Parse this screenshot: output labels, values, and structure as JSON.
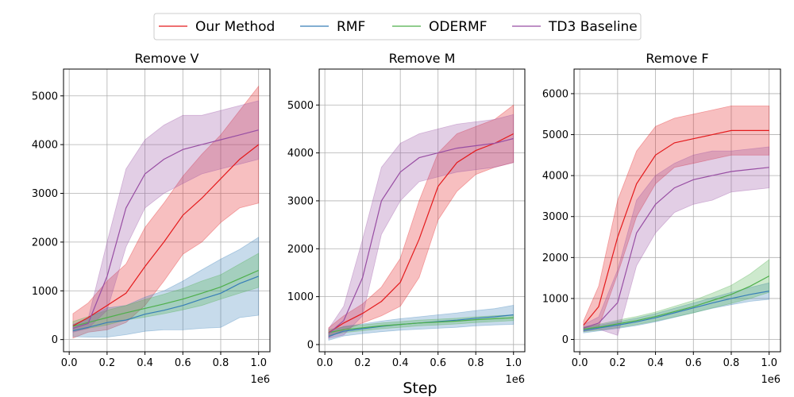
{
  "figure": {
    "xlabel": "Step",
    "x_scale_label": "1e6"
  },
  "legend": [
    {
      "name": "Our Method",
      "color": "#e41a1c"
    },
    {
      "name": "RMF",
      "color": "#377eb8"
    },
    {
      "name": "ODERMF",
      "color": "#4daf4a"
    },
    {
      "name": "TD3 Baseline",
      "color": "#984ea3"
    }
  ],
  "chart_data": [
    {
      "type": "line",
      "title": "Remove V",
      "xlim": [
        -0.03,
        1.06
      ],
      "ylim": [
        -250,
        5550
      ],
      "x_ticks": [
        0.0,
        0.2,
        0.4,
        0.6,
        0.8,
        1.0
      ],
      "x_tick_labels": [
        "0.0",
        "0.2",
        "0.4",
        "0.6",
        "0.8",
        "1.0"
      ],
      "y_ticks": [
        0,
        1000,
        2000,
        3000,
        4000,
        5000
      ],
      "y_tick_labels": [
        "0",
        "1000",
        "2000",
        "3000",
        "4000",
        "5000"
      ],
      "x": [
        0.02,
        0.1,
        0.2,
        0.3,
        0.4,
        0.5,
        0.6,
        0.7,
        0.8,
        0.9,
        1.0
      ],
      "series": [
        {
          "name": "Our Method",
          "mean": [
            280,
            450,
            700,
            950,
            1500,
            2000,
            2550,
            2900,
            3300,
            3700,
            4000
          ],
          "band": [
            250,
            300,
            500,
            600,
            800,
            800,
            800,
            900,
            900,
            1000,
            1200
          ]
        },
        {
          "name": "RMF",
          "mean": [
            180,
            250,
            350,
            400,
            520,
            600,
            700,
            830,
            950,
            1150,
            1300
          ],
          "band": [
            120,
            200,
            300,
            300,
            350,
            400,
            500,
            600,
            700,
            700,
            800
          ]
        },
        {
          "name": "ODERMF",
          "mean": [
            270,
            350,
            450,
            550,
            640,
            730,
            830,
            950,
            1080,
            1250,
            1420
          ],
          "band": [
            100,
            120,
            150,
            150,
            180,
            200,
            220,
            250,
            250,
            300,
            350
          ]
        },
        {
          "name": "TD3 Baseline",
          "mean": [
            230,
            330,
            1300,
            2700,
            3400,
            3700,
            3900,
            4000,
            4100,
            4200,
            4300
          ],
          "band": [
            80,
            100,
            700,
            800,
            700,
            700,
            700,
            600,
            600,
            600,
            600
          ]
        }
      ]
    },
    {
      "type": "line",
      "title": "Remove M",
      "xlim": [
        -0.03,
        1.06
      ],
      "ylim": [
        -150,
        5750
      ],
      "x_ticks": [
        0.0,
        0.2,
        0.4,
        0.6,
        0.8,
        1.0
      ],
      "x_tick_labels": [
        "0.0",
        "0.2",
        "0.4",
        "0.6",
        "0.8",
        "1.0"
      ],
      "y_ticks": [
        0,
        1000,
        2000,
        3000,
        4000,
        5000
      ],
      "y_tick_labels": [
        "0",
        "1000",
        "2000",
        "3000",
        "4000",
        "5000"
      ],
      "x": [
        0.02,
        0.1,
        0.2,
        0.3,
        0.4,
        0.5,
        0.6,
        0.7,
        0.8,
        0.9,
        1.0
      ],
      "series": [
        {
          "name": "Our Method",
          "mean": [
            250,
            450,
            650,
            900,
            1300,
            2200,
            3300,
            3800,
            4050,
            4200,
            4400
          ],
          "band": [
            100,
            150,
            200,
            300,
            500,
            800,
            700,
            600,
            500,
            500,
            600
          ]
        },
        {
          "name": "RMF",
          "mean": [
            170,
            280,
            330,
            380,
            420,
            450,
            480,
            510,
            550,
            580,
            620
          ],
          "band": [
            80,
            100,
            100,
            110,
            120,
            130,
            140,
            150,
            160,
            170,
            200
          ]
        },
        {
          "name": "ODERMF",
          "mean": [
            250,
            310,
            350,
            390,
            420,
            450,
            470,
            490,
            520,
            540,
            560
          ],
          "band": [
            60,
            60,
            60,
            60,
            60,
            60,
            60,
            60,
            60,
            60,
            60
          ]
        },
        {
          "name": "TD3 Baseline",
          "mean": [
            230,
            500,
            1400,
            3000,
            3600,
            3900,
            4000,
            4100,
            4150,
            4200,
            4300
          ],
          "band": [
            100,
            300,
            800,
            700,
            600,
            500,
            500,
            500,
            500,
            500,
            500
          ]
        }
      ]
    },
    {
      "type": "line",
      "title": "Remove F",
      "xlim": [
        -0.03,
        1.06
      ],
      "ylim": [
        -300,
        6600
      ],
      "x_ticks": [
        0.0,
        0.2,
        0.4,
        0.6,
        0.8,
        1.0
      ],
      "x_tick_labels": [
        "0.0",
        "0.2",
        "0.4",
        "0.6",
        "0.8",
        "1.0"
      ],
      "y_ticks": [
        0,
        1000,
        2000,
        3000,
        4000,
        5000,
        6000
      ],
      "y_tick_labels": [
        "0",
        "1000",
        "2000",
        "3000",
        "4000",
        "5000",
        "6000"
      ],
      "x": [
        0.02,
        0.1,
        0.2,
        0.3,
        0.4,
        0.5,
        0.6,
        0.7,
        0.8,
        0.9,
        1.0
      ],
      "series": [
        {
          "name": "Our Method",
          "mean": [
            350,
            800,
            2500,
            3800,
            4500,
            4800,
            4900,
            5000,
            5100,
            5100,
            5100
          ],
          "band": [
            100,
            500,
            900,
            800,
            700,
            600,
            600,
            600,
            600,
            600,
            600
          ]
        },
        {
          "name": "RMF",
          "mean": [
            220,
            280,
            350,
            430,
            530,
            650,
            770,
            890,
            1000,
            1100,
            1180
          ],
          "band": [
            60,
            70,
            80,
            90,
            100,
            110,
            120,
            130,
            150,
            170,
            200
          ]
        },
        {
          "name": "ODERMF",
          "mean": [
            250,
            300,
            380,
            460,
            560,
            680,
            800,
            950,
            1100,
            1300,
            1550
          ],
          "band": [
            60,
            70,
            90,
            100,
            110,
            130,
            150,
            180,
            220,
            300,
            400
          ]
        },
        {
          "name": "TD3 Baseline",
          "mean": [
            280,
            400,
            900,
            2600,
            3300,
            3700,
            3900,
            4000,
            4100,
            4150,
            4200
          ],
          "band": [
            80,
            150,
            800,
            800,
            700,
            600,
            600,
            600,
            500,
            500,
            500
          ]
        }
      ]
    }
  ]
}
